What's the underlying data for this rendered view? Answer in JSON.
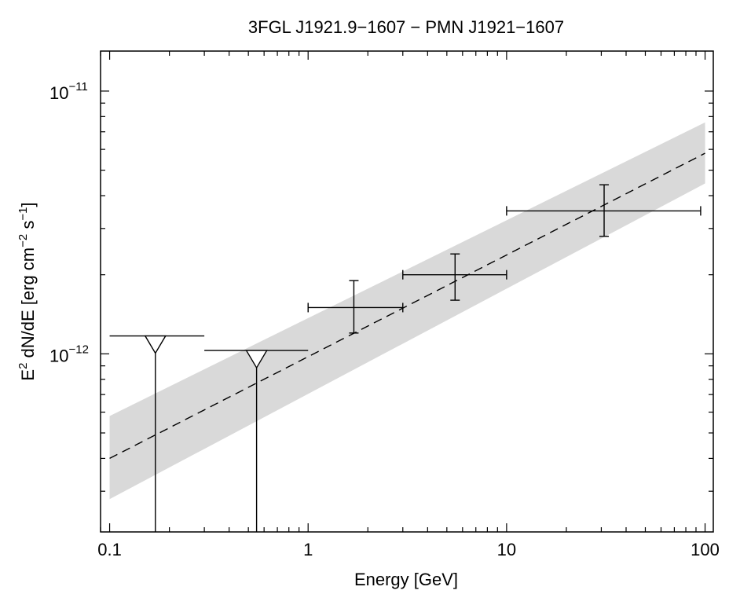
{
  "chart_data": {
    "type": "scatter",
    "title": "3FGL J1921.9−1607 − PMN J1921−1607",
    "xlabel": "Energy [GeV]",
    "ylabel": {
      "p1": "E",
      "p1_sup": "2",
      "p2": " dN/dE [erg cm",
      "p2_sup": "−2",
      "p3": " s",
      "p3_sup": "−1",
      "p4": "]"
    },
    "x_scale": "log",
    "y_scale": "log",
    "xlim": [
      0.09,
      110
    ],
    "ylim": [
      2.1e-13,
      1.42e-11
    ],
    "x_ticks": [
      {
        "value": 0.1,
        "label": "0.1"
      },
      {
        "value": 1,
        "label": "1"
      },
      {
        "value": 10,
        "label": "10"
      },
      {
        "value": 100,
        "label": "100"
      }
    ],
    "y_ticks": [
      {
        "value": 1e-12,
        "base": "10",
        "exp": "−12"
      },
      {
        "value": 1e-11,
        "base": "10",
        "exp": "−11"
      }
    ],
    "model": {
      "x": [
        0.1,
        100
      ],
      "y": [
        4e-13,
        5.8e-12
      ],
      "band_lower": [
        2.8e-13,
        4.45e-12
      ],
      "band_upper": [
        5.8e-13,
        7.6e-12
      ],
      "band_color": "#d9d9d9",
      "line_style": "dashed"
    },
    "points": [
      {
        "x": 1.7,
        "x_lo": 1.0,
        "x_hi": 3.0,
        "y": 1.5e-12,
        "y_lo": 1.2e-12,
        "y_hi": 1.9e-12
      },
      {
        "x": 5.5,
        "x_lo": 3.0,
        "x_hi": 10.0,
        "y": 2e-12,
        "y_lo": 1.6e-12,
        "y_hi": 2.4e-12
      },
      {
        "x": 31.0,
        "x_lo": 10.0,
        "x_hi": 95.0,
        "y": 3.5e-12,
        "y_lo": 2.8e-12,
        "y_hi": 4.4e-12
      }
    ],
    "upper_limits": [
      {
        "x": 0.17,
        "x_lo": 0.1,
        "x_hi": 0.3,
        "y": 1.17e-12
      },
      {
        "x": 0.55,
        "x_lo": 0.3,
        "x_hi": 1.0,
        "y": 1.03e-12
      }
    ],
    "grid": false,
    "legend": "none"
  }
}
